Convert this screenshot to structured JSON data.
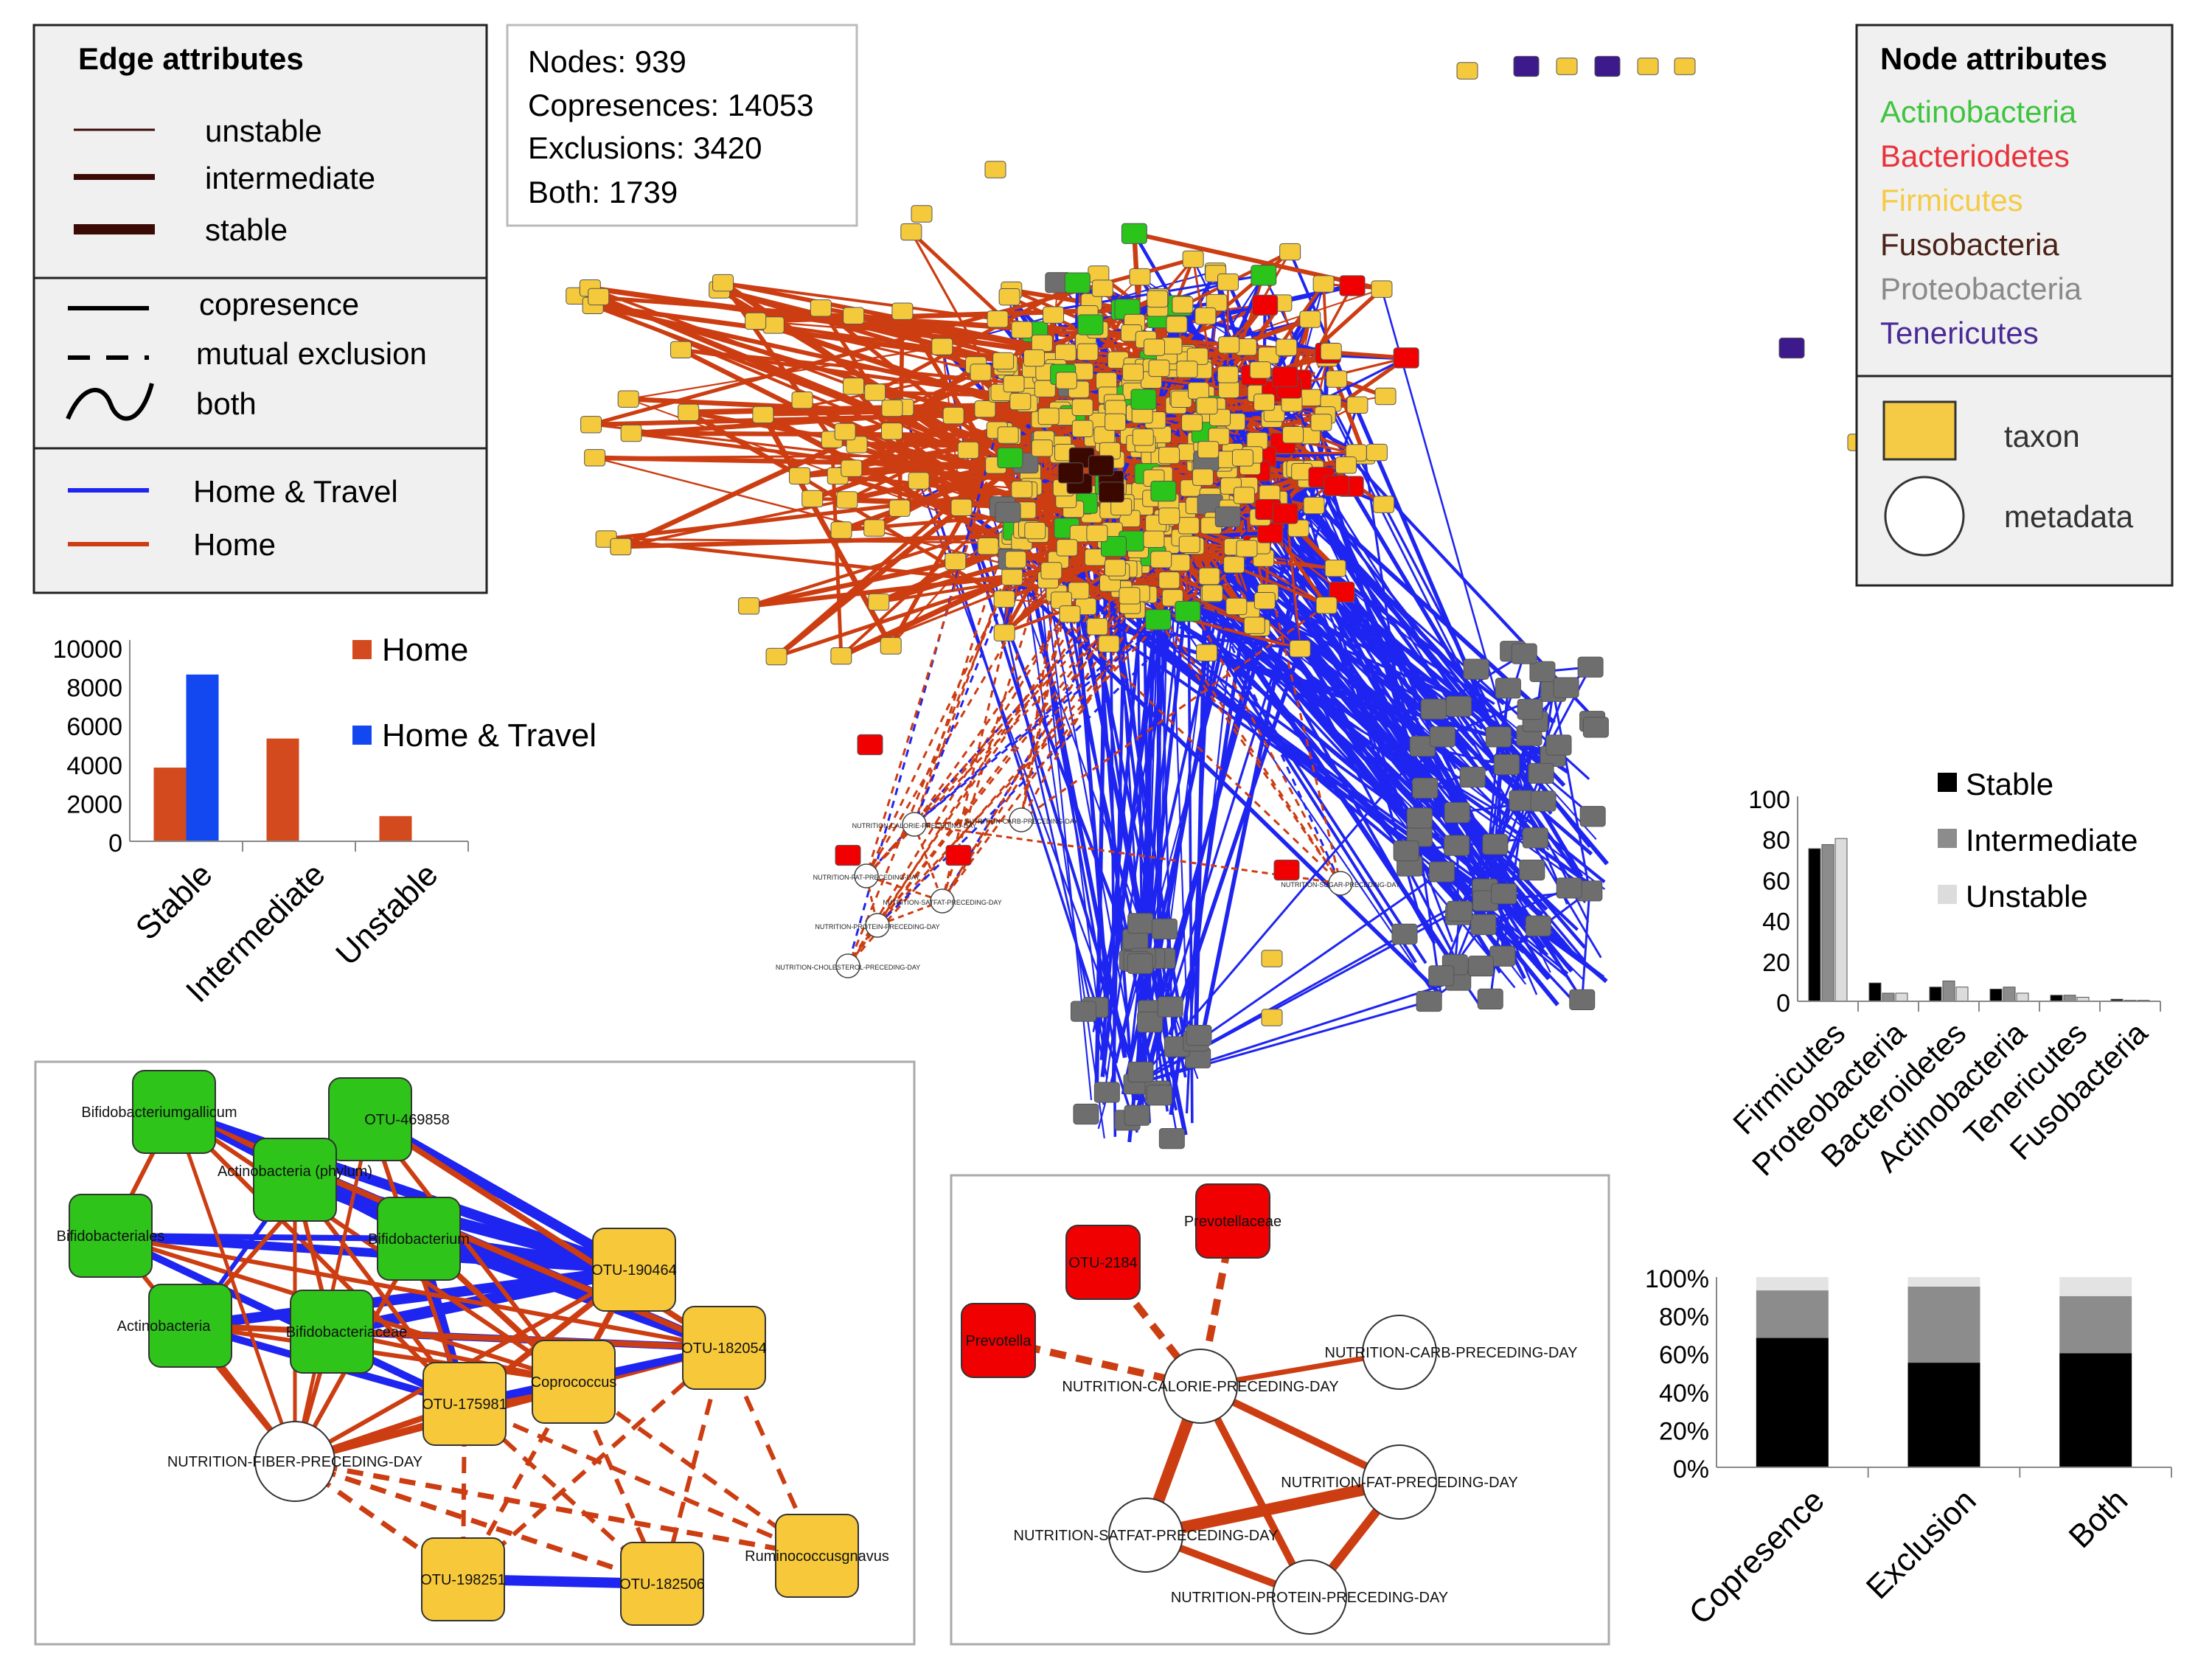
{
  "edge_legend": {
    "title": "Edge attributes",
    "stability": [
      {
        "label": "unstable"
      },
      {
        "label": "intermediate"
      },
      {
        "label": "stable"
      }
    ],
    "type": [
      {
        "label": "copresence"
      },
      {
        "label": "mutual exclusion"
      },
      {
        "label": "both"
      }
    ],
    "condition": [
      {
        "label": "Home & Travel",
        "color": "#1f25f0"
      },
      {
        "label": "Home",
        "color": "#cc3d12"
      }
    ]
  },
  "stats": {
    "lines": [
      "Nodes: 939",
      "Copresences: 14053",
      "Exclusions: 3420",
      "Both: 1739"
    ]
  },
  "node_legend": {
    "title": "Node attributes",
    "phyla": [
      {
        "label": "Actinobacteria",
        "color": "#3fc43f"
      },
      {
        "label": "Bacteriodetes",
        "color": "#e8323c"
      },
      {
        "label": "Firmicutes",
        "color": "#f5cb45"
      },
      {
        "label": "Fusobacteria",
        "color": "#4a2218"
      },
      {
        "label": "Proteobacteria",
        "color": "#8a8a8a"
      },
      {
        "label": "Tenericutes",
        "color": "#4a2a96"
      }
    ],
    "shapes": [
      {
        "label": "taxon",
        "icon": "rounded-square"
      },
      {
        "label": "metadata",
        "icon": "circle"
      }
    ]
  },
  "network": {
    "colors": {
      "home": "#cc3d12",
      "travel": "#1f25f0",
      "firmicutes": "#f5c93c",
      "bacteroidetes": "#f00000",
      "actino": "#2ac41a",
      "proteo": "#6e6e6e",
      "teneri": "#3c1a8c",
      "fuso": "#3b0800"
    },
    "metadata_labels": [
      "NUTRITION-CALORIE-PRECEDING-DAY",
      "NUTRITION-CARB-PRECEDING-DAY",
      "NUTRITION-FAT-PRECEDING-DAY",
      "NUTRITION-SATFAT-PRECEDING-DAY",
      "NUTRITION-PROTEIN-PRECEDING-DAY",
      "NUTRITION-CHOLESTEROL-PRECEDING-DAY",
      "NUTRITION-SUGAR-PRECEDING-DAY"
    ]
  },
  "inset1": {
    "nodes": [
      {
        "label": "Bifidobacteriumgallicum",
        "color": "#2ec41a"
      },
      {
        "label": "OTU-469858",
        "color": "#2ec41a"
      },
      {
        "label": "Actinobacteria (phylum)",
        "color": "#2ec41a"
      },
      {
        "label": "Bifidobacteriales",
        "color": "#2ec41a"
      },
      {
        "label": "Bifidobacterium",
        "color": "#2ec41a"
      },
      {
        "label": "Actinobacteria",
        "color": "#2ec41a"
      },
      {
        "label": "Bifidobacteriaceae",
        "color": "#2ec41a"
      },
      {
        "label": "OTU-190464",
        "color": "#f7c93a"
      },
      {
        "label": "OTU-182054",
        "color": "#f7c93a"
      },
      {
        "label": "Coprococcus",
        "color": "#f7c93a"
      },
      {
        "label": "OTU-175981",
        "color": "#f7c93a"
      },
      {
        "label": "NUTRITION-FIBER-PRECEDING-DAY",
        "color": "#ffffff"
      },
      {
        "label": "Ruminococcusgnavus",
        "color": "#f7c93a"
      },
      {
        "label": "OTU-198251",
        "color": "#f7c93a"
      },
      {
        "label": "OTU-182506",
        "color": "#f7c93a"
      }
    ]
  },
  "inset2": {
    "nodes": [
      {
        "label": "Prevotellaceae",
        "color": "#f00000"
      },
      {
        "label": "OTU-2184",
        "color": "#f00000"
      },
      {
        "label": "Prevotella",
        "color": "#f00000"
      },
      {
        "label": "NUTRITION-CARB-PRECEDING-DAY",
        "color": "#ffffff"
      },
      {
        "label": "NUTRITION-CALORIE-PRECEDING-DAY",
        "color": "#ffffff"
      },
      {
        "label": "NUTRITION-FAT-PRECEDING-DAY",
        "color": "#ffffff"
      },
      {
        "label": "NUTRITION-SATFAT-PRECEDING-DAY",
        "color": "#ffffff"
      },
      {
        "label": "NUTRITION-PROTEIN-PRECEDING-DAY",
        "color": "#ffffff"
      }
    ]
  },
  "chart_data": [
    {
      "type": "bar",
      "categories": [
        "Stable",
        "Intermediate",
        "Unstable"
      ],
      "series": [
        {
          "name": "Home",
          "color": "#d24a1e",
          "values": [
            3800,
            5300,
            1300
          ]
        },
        {
          "name": "Home & Travel",
          "color": "#1348f0",
          "values": [
            8600,
            0,
            0
          ]
        }
      ],
      "yticks": [
        "0",
        "2000",
        "4000",
        "6000",
        "8000",
        "10000"
      ],
      "ylim": [
        0,
        10000
      ],
      "legend": "right"
    },
    {
      "type": "bar",
      "categories": [
        "Firmicutes",
        "Proteobacteria",
        "Bacteroidetes",
        "Actinobacteria",
        "Tenericutes",
        "Fusobacteria"
      ],
      "series": [
        {
          "name": "Stable",
          "color": "#000000",
          "values": [
            75,
            9,
            7,
            6,
            3,
            1
          ]
        },
        {
          "name": "Intermediate",
          "color": "#8c8c8c",
          "values": [
            77,
            4,
            10,
            7,
            3,
            0.5
          ]
        },
        {
          "name": "Unstable",
          "color": "#dcdcdc",
          "values": [
            80,
            4,
            7,
            4,
            2,
            0.5
          ]
        }
      ],
      "yticks": [
        "0",
        "20",
        "40",
        "60",
        "80",
        "100"
      ],
      "ylim": [
        0,
        100
      ],
      "legend": "top-right"
    },
    {
      "type": "bar",
      "stacked": true,
      "categories": [
        "Copresence",
        "Exclusion",
        "Both"
      ],
      "series": [
        {
          "name": "Stable",
          "color": "#000000",
          "values": [
            68,
            55,
            60
          ]
        },
        {
          "name": "Intermediate",
          "color": "#8c8c8c",
          "values": [
            25,
            40,
            30
          ]
        },
        {
          "name": "Unstable",
          "color": "#e3e3e3",
          "values": [
            7,
            5,
            10
          ]
        }
      ],
      "yticks": [
        "0%",
        "20%",
        "40%",
        "60%",
        "80%",
        "100%"
      ],
      "ylim": [
        0,
        100
      ]
    }
  ]
}
